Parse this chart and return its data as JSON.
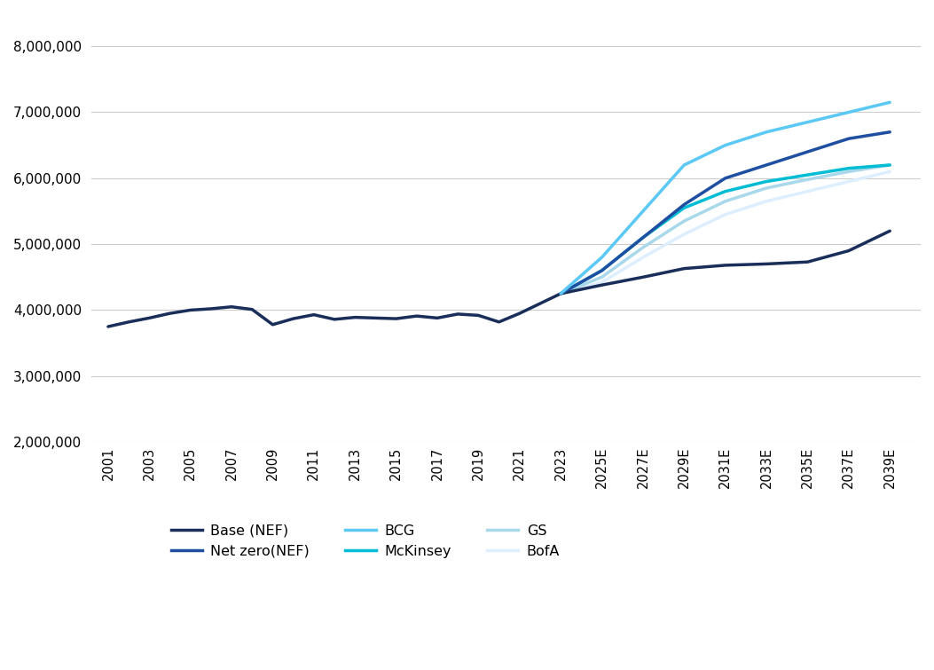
{
  "background_color": "#ffffff",
  "series": {
    "Base (NEF)": {
      "color": "#1a2e5a",
      "linewidth": 2.5,
      "zorder": 5,
      "years": [
        2001,
        2002,
        2003,
        2004,
        2005,
        2006,
        2007,
        2008,
        2009,
        2010,
        2011,
        2012,
        2013,
        2014,
        2015,
        2016,
        2017,
        2018,
        2019,
        2020,
        2021,
        2022,
        2023,
        2025,
        2027,
        2029,
        2031,
        2033,
        2035,
        2037,
        2039
      ],
      "values": [
        3750000,
        3820000,
        3880000,
        3950000,
        4000000,
        4020000,
        4050000,
        4010000,
        3780000,
        3870000,
        3930000,
        3860000,
        3890000,
        3880000,
        3870000,
        3910000,
        3880000,
        3940000,
        3920000,
        3820000,
        3950000,
        4100000,
        4250000,
        4380000,
        4500000,
        4630000,
        4680000,
        4700000,
        4730000,
        4900000,
        5200000
      ]
    },
    "Net zero(NEF)": {
      "color": "#1e4fa0",
      "linewidth": 2.5,
      "zorder": 6,
      "years": [
        2023,
        2025,
        2027,
        2029,
        2031,
        2033,
        2035,
        2037,
        2039
      ],
      "values": [
        4250000,
        4600000,
        5100000,
        5600000,
        6000000,
        6200000,
        6400000,
        6600000,
        6700000
      ]
    },
    "BCG": {
      "color": "#5bc8f5",
      "linewidth": 2.5,
      "zorder": 7,
      "years": [
        2023,
        2025,
        2027,
        2029,
        2031,
        2033,
        2035,
        2037,
        2039
      ],
      "values": [
        4250000,
        4800000,
        5500000,
        6200000,
        6500000,
        6700000,
        6850000,
        7000000,
        7150000
      ]
    },
    "McKinsey": {
      "color": "#00bcd4",
      "linewidth": 2.5,
      "zorder": 4,
      "years": [
        2023,
        2025,
        2027,
        2029,
        2031,
        2033,
        2035,
        2037,
        2039
      ],
      "values": [
        4250000,
        4600000,
        5100000,
        5550000,
        5800000,
        5950000,
        6050000,
        6150000,
        6200000
      ]
    },
    "GS": {
      "color": "#a8d8ea",
      "linewidth": 2.5,
      "zorder": 3,
      "years": [
        2023,
        2025,
        2027,
        2029,
        2031,
        2033,
        2035,
        2037,
        2039
      ],
      "values": [
        4250000,
        4500000,
        4950000,
        5350000,
        5650000,
        5850000,
        5980000,
        6100000,
        6200000
      ]
    },
    "BofA": {
      "color": "#ddeeff",
      "linewidth": 2.5,
      "zorder": 2,
      "years": [
        2023,
        2025,
        2027,
        2029,
        2031,
        2033,
        2035,
        2037,
        2039
      ],
      "values": [
        4250000,
        4420000,
        4800000,
        5150000,
        5450000,
        5650000,
        5800000,
        5950000,
        6100000
      ]
    }
  },
  "ylim": [
    2000000,
    8500000
  ],
  "yticks": [
    2000000,
    3000000,
    4000000,
    5000000,
    6000000,
    7000000,
    8000000
  ],
  "xtick_labels_historical": [
    "2001",
    "2003",
    "2005",
    "2007",
    "2009",
    "2011",
    "2013",
    "2015",
    "2017",
    "2019",
    "2021",
    "2023"
  ],
  "xtick_labels_forecast": [
    "2025E",
    "2027E",
    "2029E",
    "2031E",
    "2033E",
    "2035E",
    "2037E",
    "2039E"
  ],
  "legend_order": [
    "Base (NEF)",
    "Net zero(NEF)",
    "BCG",
    "McKinsey",
    "GS",
    "BofA"
  ]
}
